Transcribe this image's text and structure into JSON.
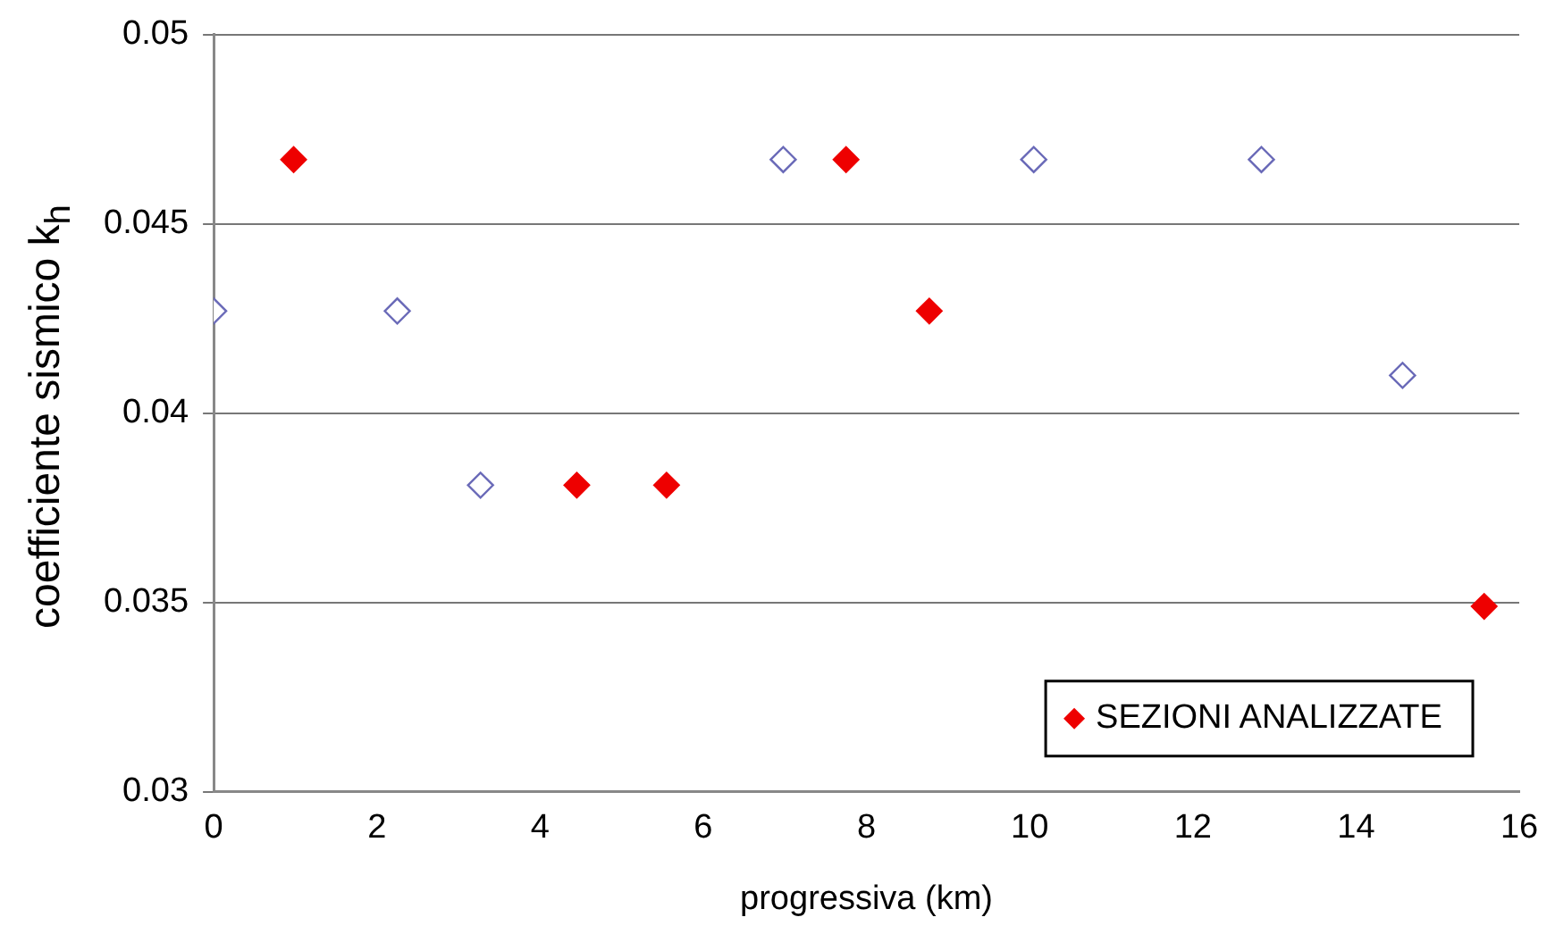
{
  "chart_data": {
    "type": "scatter",
    "xlabel": "progressiva (km)",
    "ylabel": "coefficiente sismico k$_{h}$",
    "xlim": [
      0,
      16
    ],
    "xticks": [
      0,
      2,
      4,
      6,
      8,
      10,
      12,
      14,
      16
    ],
    "ylim": [
      0.03,
      0.05
    ],
    "yticks": [
      0.03,
      0.035,
      0.04,
      0.045,
      0.05
    ],
    "grid": "y",
    "legend": "bottom right",
    "marker": "diamond",
    "series": [
      {
        "color": "#6a6ab8",
        "x": [
          0,
          2.25,
          3.27,
          6.98,
          10.05,
          12.84,
          14.57
        ],
        "values": [
          0.0427,
          0.0427,
          0.0381,
          0.0467,
          0.0467,
          0.0467,
          0.041
        ]
      },
      {
        "name": "SEZIONI ANALIZZATE",
        "color": "#ee0000",
        "x": [
          0.98,
          4.45,
          5.55,
          7.75,
          8.77,
          15.57
        ],
        "values": [
          0.0467,
          0.0381,
          0.0381,
          0.0467,
          0.0427,
          0.0349
        ]
      }
    ]
  }
}
